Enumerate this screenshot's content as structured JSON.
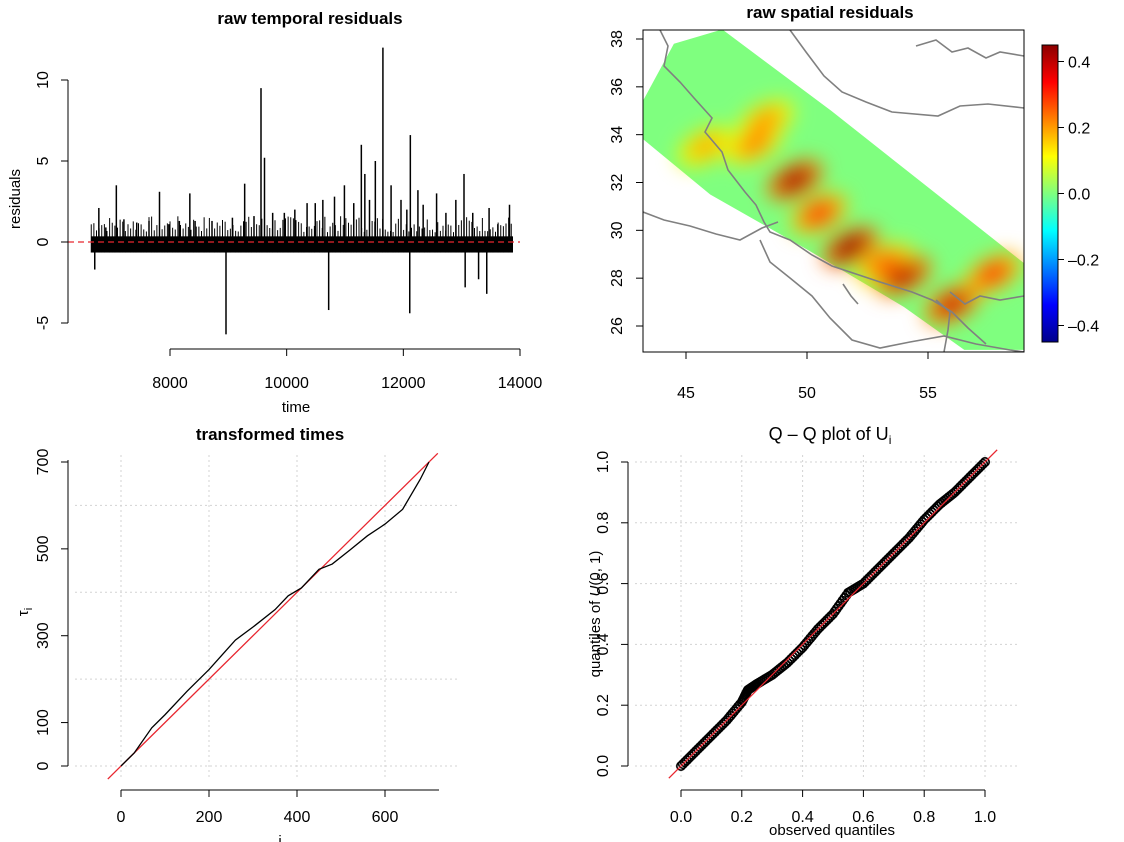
{
  "figure": {
    "panels": [
      {
        "id": "temporal",
        "title": "raw temporal residuals",
        "xlabel": "time",
        "ylabel": "residuals"
      },
      {
        "id": "spatial",
        "title": "raw spatial residuals",
        "xlabel": "",
        "ylabel": ""
      },
      {
        "id": "transformed",
        "title": "transformed times",
        "xlabel": "i",
        "ylabel": "τ",
        "ylabel_sub": "i"
      },
      {
        "id": "qq",
        "title": "Q – Q plot of U",
        "title_sub": "i",
        "xlabel": "observed quantiles",
        "ylabel_pre": "quantiles of ",
        "ylabel_it": "U",
        "ylabel_post": "(0, 1)"
      }
    ]
  },
  "chart_data": [
    {
      "type": "line",
      "title": "raw temporal residuals",
      "xlabel": "time",
      "ylabel": "residuals",
      "xlim": [
        6500,
        14200
      ],
      "ylim": [
        -6,
        12.5
      ],
      "xticks": [
        8000,
        10000,
        12000,
        14000
      ],
      "yticks": [
        -5,
        0,
        5,
        10
      ],
      "baseline": 0,
      "baseline_color": "#e8262f",
      "base_band": [
        6650,
        13880
      ],
      "spikes": [
        [
          6710,
          -1.7
        ],
        [
          6780,
          2.1
        ],
        [
          6900,
          0.9
        ],
        [
          7080,
          3.5
        ],
        [
          7210,
          1.4
        ],
        [
          7430,
          1.2
        ],
        [
          7640,
          1.3
        ],
        [
          7820,
          3.1
        ],
        [
          7980,
          1.1
        ],
        [
          8160,
          1.3
        ],
        [
          8340,
          3.0
        ],
        [
          8430,
          1.3
        ],
        [
          8720,
          1.3
        ],
        [
          8960,
          -5.7
        ],
        [
          9070,
          1.5
        ],
        [
          9280,
          3.6
        ],
        [
          9440,
          1.6
        ],
        [
          9560,
          9.5
        ],
        [
          9620,
          5.2
        ],
        [
          9760,
          1.8
        ],
        [
          9960,
          1.8
        ],
        [
          10140,
          2.0
        ],
        [
          10350,
          2.4
        ],
        [
          10490,
          2.4
        ],
        [
          10620,
          2.6
        ],
        [
          10720,
          -4.2
        ],
        [
          10820,
          2.8
        ],
        [
          10990,
          3.5
        ],
        [
          11150,
          2.4
        ],
        [
          11280,
          6.0
        ],
        [
          11340,
          4.2
        ],
        [
          11420,
          2.6
        ],
        [
          11520,
          5.0
        ],
        [
          11650,
          12.0
        ],
        [
          11790,
          3.5
        ],
        [
          11960,
          2.6
        ],
        [
          12060,
          2.0
        ],
        [
          12120,
          6.6
        ],
        [
          12110,
          -4.4
        ],
        [
          12250,
          3.2
        ],
        [
          12340,
          2.3
        ],
        [
          12570,
          3.0
        ],
        [
          12730,
          1.8
        ],
        [
          12900,
          2.6
        ],
        [
          13040,
          4.2
        ],
        [
          13060,
          -2.8
        ],
        [
          13190,
          1.8
        ],
        [
          13290,
          -2.3
        ],
        [
          13430,
          -3.2
        ],
        [
          13470,
          2.1
        ],
        [
          13620,
          1.1
        ],
        [
          13820,
          2.3
        ]
      ]
    },
    {
      "type": "heatmap",
      "title": "raw spatial residuals",
      "xlim": [
        43,
        59
      ],
      "ylim": [
        25,
        38.5
      ],
      "xticks": [
        45,
        50,
        55
      ],
      "yticks": [
        26,
        28,
        30,
        32,
        34,
        36,
        38
      ],
      "colorbar": {
        "range": [
          -0.45,
          0.45
        ],
        "ticks": [
          -0.4,
          -0.2,
          0.0,
          0.2,
          0.4
        ],
        "tick_labels": [
          "–0.4",
          "–0.2",
          "0.0",
          "0.2",
          "0.4"
        ],
        "colors": [
          "#00008b",
          "#0000ff",
          "#0080ff",
          "#00ffff",
          "#7fff7f",
          "#ffff00",
          "#ff7f00",
          "#ff0000",
          "#8b0000"
        ]
      },
      "region_polygon": [
        [
          43,
          35.0
        ],
        [
          44.5,
          37.8
        ],
        [
          46.5,
          38.4
        ],
        [
          51,
          35.0
        ],
        [
          55,
          31.8
        ],
        [
          59,
          28.6
        ],
        [
          59,
          25.0
        ],
        [
          56.5,
          25.0
        ],
        [
          54,
          26.8
        ],
        [
          50,
          29.2
        ],
        [
          46,
          31.5
        ],
        [
          43,
          34.0
        ]
      ],
      "background_value": 0.0,
      "hotspots": [
        {
          "lon": 47.8,
          "lat": 33.6,
          "value": 0.22
        },
        {
          "lon": 49.5,
          "lat": 32.1,
          "value": 0.42
        },
        {
          "lon": 50.5,
          "lat": 30.7,
          "value": 0.3
        },
        {
          "lon": 51.8,
          "lat": 29.3,
          "value": 0.44
        },
        {
          "lon": 54.0,
          "lat": 28.1,
          "value": 0.4
        },
        {
          "lon": 56.0,
          "lat": 26.9,
          "value": 0.38
        },
        {
          "lon": 57.7,
          "lat": 28.2,
          "value": 0.3
        },
        {
          "lon": 45.8,
          "lat": 33.5,
          "value": 0.18
        },
        {
          "lon": 48.3,
          "lat": 34.6,
          "value": 0.2
        },
        {
          "lon": 53.2,
          "lat": 28.6,
          "value": 0.25
        }
      ]
    },
    {
      "type": "line",
      "title": "transformed times",
      "xlabel": "i",
      "ylabel": "τi",
      "xlim": [
        -30,
        740
      ],
      "ylim": [
        -30,
        720
      ],
      "xticks": [
        0,
        200,
        400,
        600
      ],
      "yticks": [
        0,
        100,
        300,
        500,
        700
      ],
      "grid": true,
      "reference_line": {
        "slope": 1,
        "intercept": 0,
        "color": "#e8262f"
      },
      "series": [
        {
          "x": [
            0,
            30,
            70,
            100,
            150,
            200,
            230,
            260,
            300,
            350,
            380,
            410,
            450,
            480,
            520,
            560,
            600,
            640,
            680,
            700
          ],
          "y": [
            0,
            30,
            88,
            118,
            172,
            222,
            256,
            290,
            320,
            360,
            392,
            410,
            453,
            465,
            497,
            530,
            557,
            591,
            660,
            700
          ]
        }
      ]
    },
    {
      "type": "scatter",
      "title": "Q – Q plot of Ui",
      "xlabel": "observed quantiles",
      "ylabel": "quantiles of U(0, 1)",
      "xlim": [
        -0.06,
        1.08
      ],
      "ylim": [
        -0.04,
        1.04
      ],
      "xticks": [
        0.0,
        0.2,
        0.4,
        0.6,
        0.8,
        1.0
      ],
      "yticks": [
        0.0,
        0.2,
        0.4,
        0.6,
        0.8,
        1.0
      ],
      "grid": true,
      "reference_line": {
        "slope": 1,
        "intercept": 0,
        "color": "#e8262f"
      },
      "series": [
        {
          "x": [
            0.0,
            0.05,
            0.1,
            0.15,
            0.2,
            0.22,
            0.25,
            0.3,
            0.35,
            0.4,
            0.45,
            0.5,
            0.55,
            0.6,
            0.65,
            0.7,
            0.75,
            0.8,
            0.85,
            0.9,
            0.95,
            1.0
          ],
          "y": [
            0.0,
            0.05,
            0.1,
            0.15,
            0.21,
            0.25,
            0.27,
            0.3,
            0.34,
            0.39,
            0.45,
            0.5,
            0.57,
            0.6,
            0.65,
            0.7,
            0.75,
            0.81,
            0.86,
            0.9,
            0.95,
            1.0
          ]
        }
      ]
    }
  ]
}
